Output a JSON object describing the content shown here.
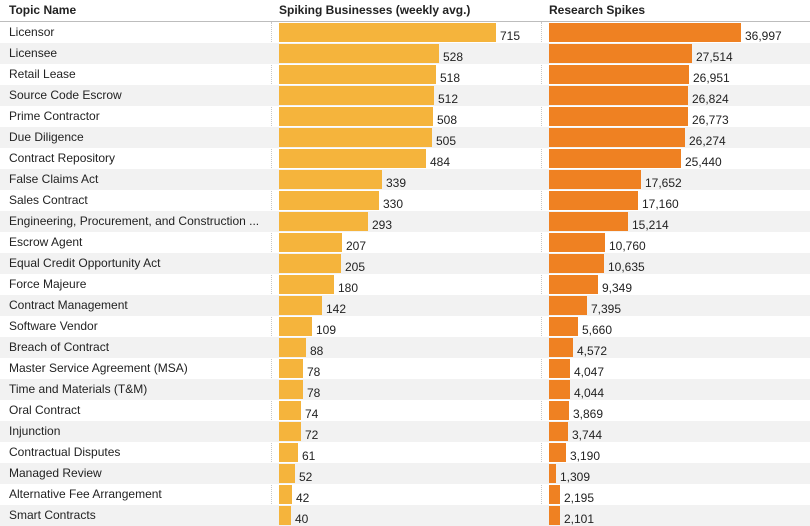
{
  "header": {
    "topic": "Topic Name",
    "businesses": "Spiking Businesses (weekly avg.)",
    "research": "Research Spikes"
  },
  "colors": {
    "businesses_bar": "#f5b43c",
    "research_bar": "#ef8122",
    "row_alt": "#f2f2f2"
  },
  "chart_data": {
    "type": "bar",
    "orientation": "horizontal",
    "categories": [
      "Licensor",
      "Licensee",
      "Retail Lease",
      "Source Code Escrow",
      "Prime Contractor",
      "Due Diligence",
      "Contract Repository",
      "False Claims Act",
      "Sales Contract",
      "Engineering, Procurement, and Construction ...",
      "Escrow Agent",
      "Equal Credit Opportunity Act",
      "Force Majeure",
      "Contract Management",
      "Software Vendor",
      "Breach of Contract",
      "Master Service Agreement (MSA)",
      "Time and Materials (T&M)",
      "Oral Contract",
      "Injunction",
      "Contractual Disputes",
      "Managed Review",
      "Alternative Fee Arrangement",
      "Smart Contracts"
    ],
    "series": [
      {
        "name": "Spiking Businesses (weekly avg.)",
        "values": [
          715,
          528,
          518,
          512,
          508,
          505,
          484,
          339,
          330,
          293,
          207,
          205,
          180,
          142,
          109,
          88,
          78,
          78,
          74,
          72,
          61,
          52,
          42,
          40
        ],
        "labels": [
          "715",
          "528",
          "518",
          "512",
          "508",
          "505",
          "484",
          "339",
          "330",
          "293",
          "207",
          "205",
          "180",
          "142",
          "109",
          "88",
          "78",
          "78",
          "74",
          "72",
          "61",
          "52",
          "42",
          "40"
        ],
        "xlim": [
          0,
          715
        ]
      },
      {
        "name": "Research Spikes",
        "values": [
          36997,
          27514,
          26951,
          26824,
          26773,
          26274,
          25440,
          17652,
          17160,
          15214,
          10760,
          10635,
          9349,
          7395,
          5660,
          4572,
          4047,
          4044,
          3869,
          3744,
          3190,
          1309,
          2195,
          2101
        ],
        "labels": [
          "36,997",
          "27,514",
          "26,951",
          "26,824",
          "26,773",
          "26,274",
          "25,440",
          "17,652",
          "17,160",
          "15,214",
          "10,760",
          "10,635",
          "9,349",
          "7,395",
          "5,660",
          "4,572",
          "4,047",
          "4,044",
          "3,869",
          "3,744",
          "3,190",
          "1,309",
          "2,195",
          "2,101"
        ],
        "xlim": [
          0,
          36997
        ]
      }
    ]
  }
}
